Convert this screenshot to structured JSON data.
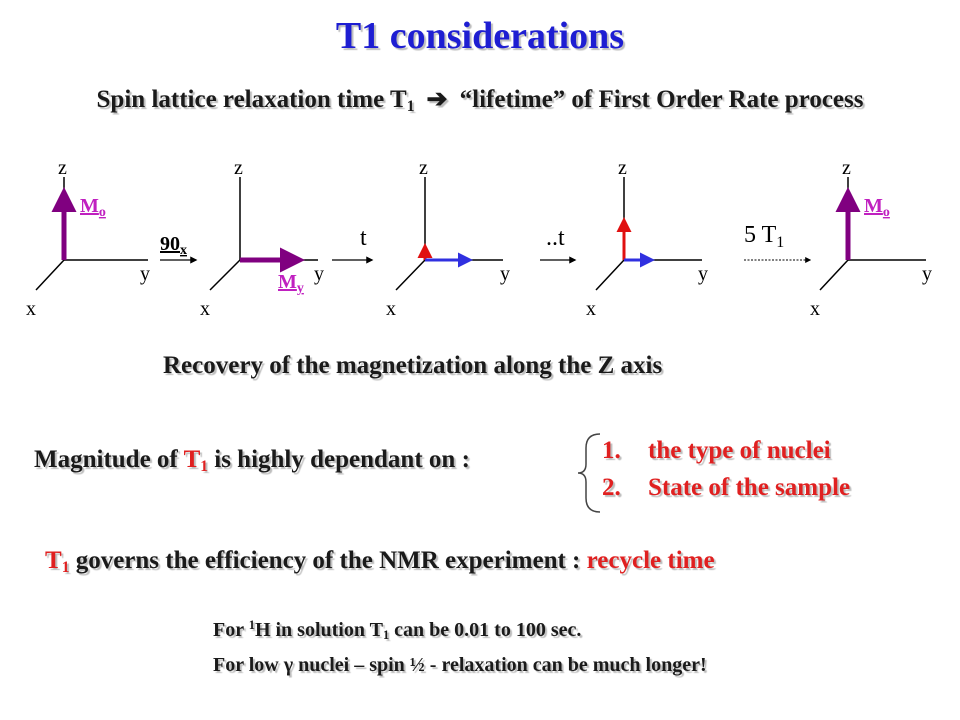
{
  "title": "T1 considerations",
  "subtitle": {
    "before": "Spin lattice relaxation time T",
    "sub": "1",
    "arrow": "➔",
    "after": " “lifetime” of First Order Rate process"
  },
  "diagram": {
    "axis_labels": {
      "z": "z",
      "y": "y",
      "x": "x"
    },
    "vector_labels": {
      "mo": {
        "main": "M",
        "sub": "o"
      },
      "my": {
        "main": "M",
        "sub": "y"
      }
    },
    "pulse": {
      "main": "90",
      "sub": "x"
    },
    "steps": {
      "t": "t",
      "tt": "..t",
      "five": "5 T",
      "five_sub": "1"
    },
    "colors": {
      "vector_purple": "#800080",
      "vector_red": "#e01010",
      "vector_blue": "#3030e0",
      "label_purple": "#c020c0",
      "axes": "#000000"
    }
  },
  "recovery_text": "Recovery of the magnetization along the Z axis",
  "magnitude": {
    "before": "Magnitude of ",
    "t": "T",
    "sub": "1",
    "after": " is highly dependant on :"
  },
  "factors": [
    {
      "num": "1.",
      "text": "the type of nuclei"
    },
    {
      "num": "2.",
      "text": "State of the sample"
    }
  ],
  "governs": {
    "t": "T",
    "sub": "1",
    "middle": " governs the efficiency of the NMR experiment : ",
    "highlight": "recycle time"
  },
  "notes": {
    "line1": {
      "a": "For ",
      "sup": "1",
      "b": "H in solution T",
      "sub": "1",
      "c": " can be 0.01 to 100 sec."
    },
    "line2": {
      "a": "For low ",
      "gamma": "γ",
      "b": " nuclei – spin ½ - relaxation can be much longer!"
    }
  }
}
